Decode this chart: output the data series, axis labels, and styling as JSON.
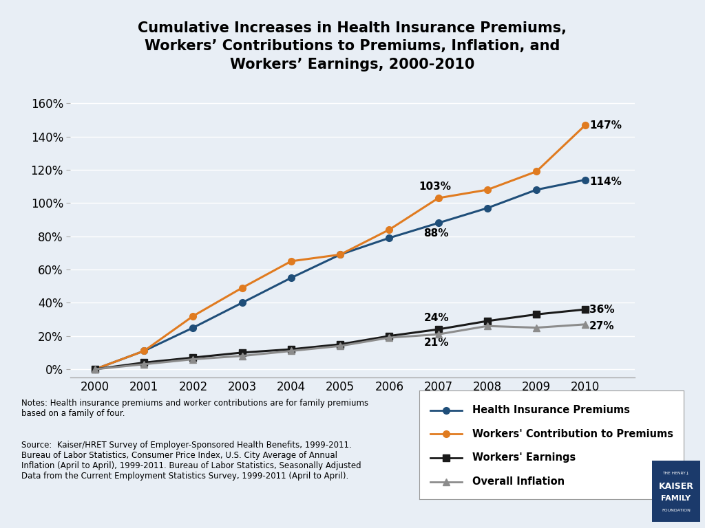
{
  "title": "Cumulative Increases in Health Insurance Premiums,\nWorkers’ Contributions to Premiums, Inflation, and\nWorkers’ Earnings, 2000-2010",
  "years": [
    2000,
    2001,
    2002,
    2003,
    2004,
    2005,
    2006,
    2007,
    2008,
    2009,
    2010
  ],
  "health_insurance_premiums": [
    0,
    11,
    25,
    40,
    55,
    69,
    79,
    88,
    97,
    108,
    114
  ],
  "workers_contribution": [
    0,
    11,
    32,
    49,
    65,
    69,
    84,
    103,
    108,
    119,
    147
  ],
  "workers_earnings": [
    0,
    4,
    7,
    10,
    12,
    15,
    20,
    24,
    29,
    33,
    36
  ],
  "overall_inflation": [
    0,
    3,
    6,
    8,
    11,
    14,
    19,
    21,
    26,
    25,
    27
  ],
  "colors": {
    "health_insurance": "#1f4e79",
    "workers_contribution": "#e07b20",
    "workers_earnings": "#1a1a1a",
    "overall_inflation": "#8c8c8c"
  },
  "ylim": [
    -5,
    165
  ],
  "yticks": [
    0,
    20,
    40,
    60,
    80,
    100,
    120,
    140,
    160
  ],
  "background_color": "#e8eef5",
  "notes_text": "Notes: Health insurance premiums and worker contributions are for family premiums\nbased on a family of four.",
  "source_text": "Source:  Kaiser/HRET Survey of Employer-Sponsored Health Benefits, 1999-2011.\nBureau of Labor Statistics, Consumer Price Index, U.S. City Average of Annual\nInflation (April to April), 1999-2011. Bureau of Labor Statistics, Seasonally Adjusted\nData from the Current Employment Statistics Survey, 1999-2011 (April to April).",
  "legend_labels": [
    "Health Insurance Premiums",
    "Workers' Contribution to Premiums",
    "Workers' Earnings",
    "Overall Inflation"
  ]
}
